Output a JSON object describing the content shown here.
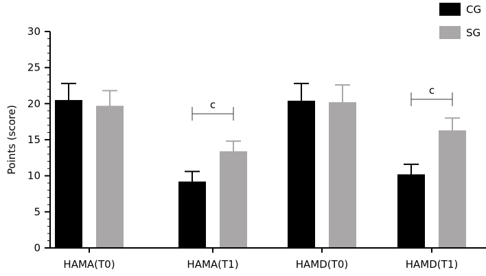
{
  "chart_data": {
    "type": "bar",
    "title": "",
    "xlabel": "",
    "ylabel": "Points (score)",
    "ylim": [
      0,
      30
    ],
    "yticks": [
      0,
      5,
      10,
      15,
      20,
      25,
      30
    ],
    "grid": false,
    "legend_position": "top-right",
    "categories": [
      "HAMA(T0)",
      "HAMA(T1)",
      "HAMD(T0)",
      "HAMD(T1)"
    ],
    "series": [
      {
        "name": "CG",
        "color": "#000000",
        "values": [
          20.5,
          9.2,
          20.4,
          10.2
        ],
        "errors": [
          2.3,
          1.4,
          2.4,
          1.4
        ]
      },
      {
        "name": "SG",
        "color": "#a9a7a7",
        "values": [
          19.7,
          13.4,
          20.2,
          16.3
        ],
        "errors": [
          2.1,
          1.4,
          2.4,
          1.7
        ]
      }
    ],
    "annotations": [
      {
        "category_index": 1,
        "label": "c",
        "value": 18.6
      },
      {
        "category_index": 3,
        "label": "c",
        "value": 20.6
      }
    ]
  }
}
